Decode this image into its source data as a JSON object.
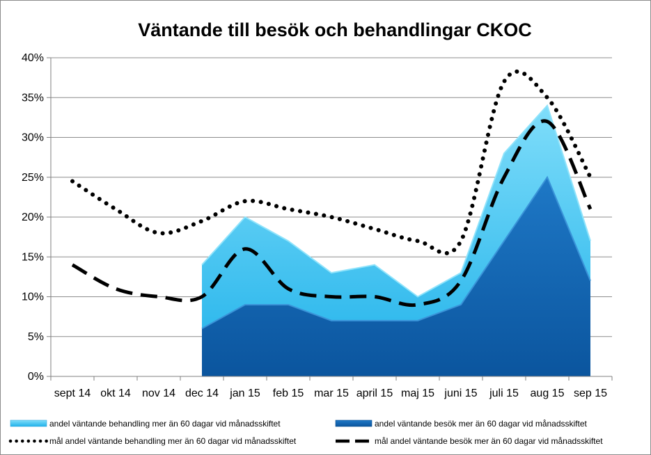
{
  "chart_data": {
    "type": "area",
    "title": "Väntande till besök och behandlingar CKOC",
    "xlabel": "",
    "ylabel": "",
    "ylim": [
      0,
      40
    ],
    "y_ticks": [
      "0%",
      "5%",
      "10%",
      "15%",
      "20%",
      "25%",
      "30%",
      "35%",
      "40%"
    ],
    "categories": [
      "sept 14",
      "okt 14",
      "nov 14",
      "dec 14",
      "jan 15",
      "feb 15",
      "mar 15",
      "april 15",
      "maj 15",
      "juni 15",
      "juli 15",
      "aug 15",
      "sep 15"
    ],
    "grid": true,
    "legend_position": "bottom",
    "series": [
      {
        "name": "andel väntande behandling mer än 60 dagar vid månadsskiftet",
        "kind": "area",
        "color": "#3FC3F2",
        "values": [
          null,
          null,
          null,
          14,
          20,
          17,
          13,
          14,
          10,
          13,
          28,
          34,
          17
        ]
      },
      {
        "name": "andel väntande besök mer än 60 dagar vid månadsskiftet",
        "kind": "area",
        "color": "#1467B5",
        "values": [
          null,
          null,
          null,
          6,
          9,
          9,
          7,
          7,
          7,
          9,
          17,
          25,
          12
        ]
      },
      {
        "name": "mål andel väntande behandling mer än 60 dagar vid månadsskiftet",
        "kind": "line",
        "style": "dotted",
        "color": "#000000",
        "values": [
          24.5,
          21,
          18,
          19.5,
          22,
          21,
          20,
          18.5,
          17,
          17,
          37,
          35,
          25
        ]
      },
      {
        "name": "mål andel  väntande besök mer än 60 dagar vid månadsskiftet",
        "kind": "line",
        "style": "dashed",
        "color": "#000000",
        "values": [
          14,
          11,
          10,
          10,
          16,
          11,
          10,
          10,
          9,
          12,
          25,
          32,
          21
        ]
      }
    ]
  }
}
